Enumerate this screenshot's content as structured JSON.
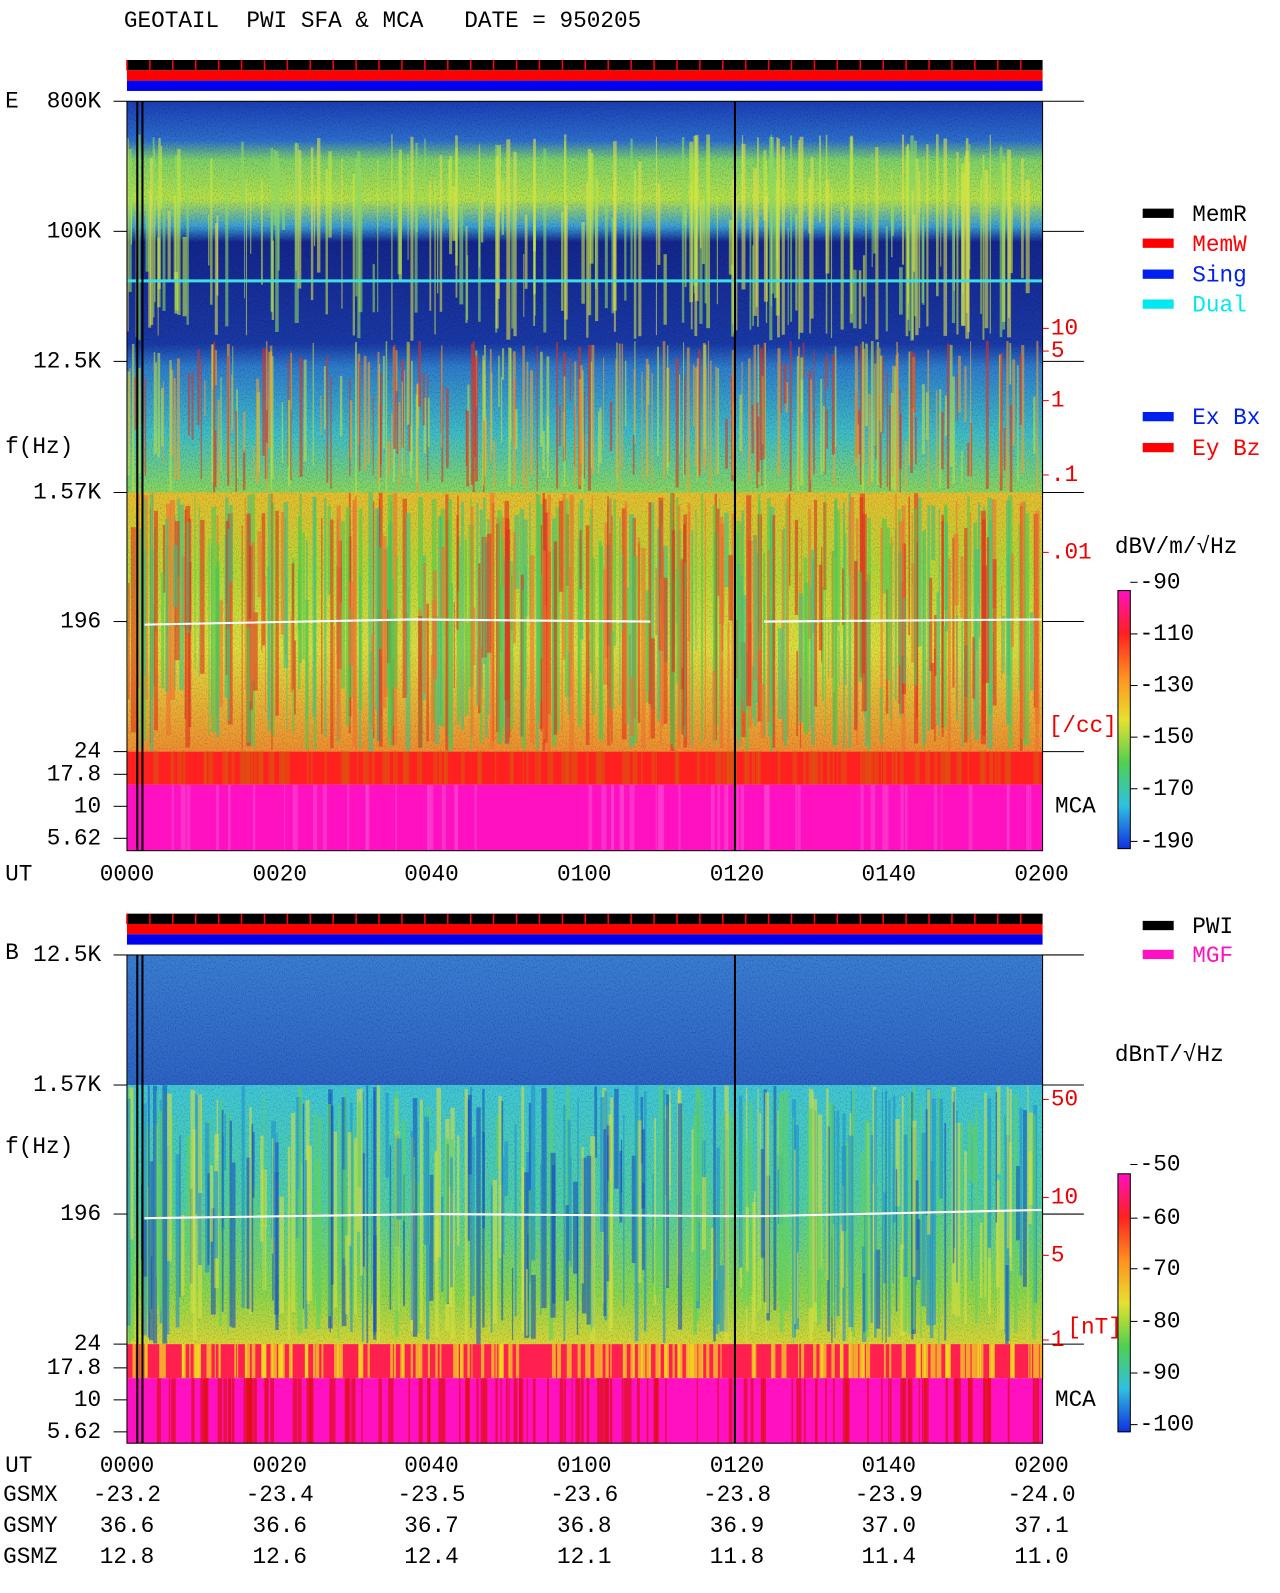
{
  "title": "GEOTAIL  PWI SFA & MCA   DATE = 950205",
  "panel_e": {
    "label": "E",
    "freq_axis_label": "f(Hz)",
    "freq_ticks": [
      "800K",
      "100K",
      "12.5K",
      "1.57K",
      "196",
      "24",
      "17.8",
      "10",
      "5.62"
    ],
    "density_ticks": [
      "10",
      "5",
      "1",
      ".1",
      ".01"
    ],
    "density_unit": "[/cc]",
    "mca_label": "MCA",
    "colorbar_unit": "dBV/m/√Hz",
    "colorbar_ticks": [
      "-90",
      "-110",
      "-130",
      "-150",
      "-170",
      "-190"
    ],
    "time_label": "UT",
    "time_ticks": [
      "0000",
      "0020",
      "0040",
      "0100",
      "0120",
      "0140",
      "0200"
    ]
  },
  "panel_b": {
    "label": "B",
    "freq_axis_label": "f(Hz)",
    "freq_ticks": [
      "12.5K",
      "1.57K",
      "196",
      "24",
      "17.8",
      "10",
      "5.62"
    ],
    "field_ticks": [
      "50",
      "10",
      "5",
      "1"
    ],
    "field_unit": "[nT]",
    "mca_label": "MCA",
    "colorbar_unit": "dBnT/√Hz",
    "colorbar_ticks": [
      "-50",
      "-60",
      "-70",
      "-80",
      "-90",
      "-100"
    ],
    "time_label": "UT",
    "time_ticks": [
      "0000",
      "0020",
      "0040",
      "0100",
      "0120",
      "0140",
      "0200"
    ]
  },
  "legend_mode": [
    "MemR",
    "MemW",
    "Sing",
    "Dual"
  ],
  "legend_component": [
    "Ex Bx",
    "Ey Bz"
  ],
  "legend_source": [
    "PWI",
    "MGF"
  ],
  "orbit": {
    "rows": [
      {
        "label": "GSMX",
        "values": [
          "-23.2",
          "-23.4",
          "-23.5",
          "-23.6",
          "-23.8",
          "-23.9",
          "-24.0"
        ]
      },
      {
        "label": "GSMY",
        "values": [
          "36.6",
          "36.6",
          "36.7",
          "36.8",
          "36.9",
          "37.0",
          "37.1"
        ]
      },
      {
        "label": "GSMZ",
        "values": [
          "12.8",
          "12.6",
          "12.4",
          "12.1",
          "11.8",
          "11.4",
          "11.0"
        ]
      }
    ]
  }
}
